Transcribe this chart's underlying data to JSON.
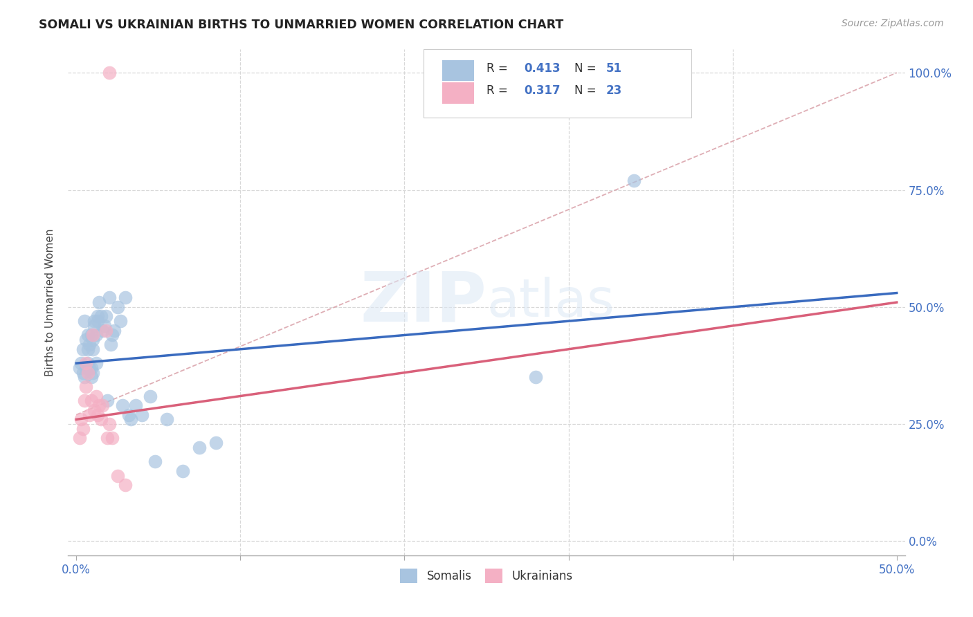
{
  "title": "SOMALI VS UKRAINIAN BIRTHS TO UNMARRIED WOMEN CORRELATION CHART",
  "source": "Source: ZipAtlas.com",
  "ylabel": "Births to Unmarried Women",
  "watermark": "ZIPatlas",
  "legend_r_somali": "0.413",
  "legend_n_somali": "51",
  "legend_r_ukrainian": "0.317",
  "legend_n_ukrainian": "23",
  "somali_color": "#a8c4e0",
  "ukrainian_color": "#f4b0c4",
  "somali_trend_color": "#3a6bbf",
  "ukrainian_trend_color": "#d9607a",
  "diagonal_color": "#d9a0a8",
  "grid_color": "#d8d8d8",
  "title_color": "#222222",
  "source_color": "#999999",
  "label_color": "#4472c4",
  "xlim": [
    0.0,
    0.5
  ],
  "ylim": [
    -0.03,
    1.05
  ],
  "somali_x": [
    0.002,
    0.003,
    0.004,
    0.004,
    0.005,
    0.005,
    0.006,
    0.006,
    0.007,
    0.007,
    0.007,
    0.008,
    0.008,
    0.009,
    0.009,
    0.009,
    0.01,
    0.01,
    0.01,
    0.011,
    0.011,
    0.012,
    0.012,
    0.013,
    0.013,
    0.014,
    0.015,
    0.016,
    0.017,
    0.018,
    0.019,
    0.02,
    0.021,
    0.022,
    0.023,
    0.025,
    0.027,
    0.028,
    0.03,
    0.032,
    0.033,
    0.036,
    0.04,
    0.045,
    0.048,
    0.055,
    0.065,
    0.075,
    0.085,
    0.28,
    0.34
  ],
  "somali_y": [
    0.37,
    0.38,
    0.36,
    0.41,
    0.47,
    0.35,
    0.37,
    0.43,
    0.41,
    0.44,
    0.38,
    0.37,
    0.42,
    0.44,
    0.37,
    0.35,
    0.36,
    0.41,
    0.43,
    0.47,
    0.46,
    0.38,
    0.44,
    0.48,
    0.47,
    0.51,
    0.48,
    0.45,
    0.46,
    0.48,
    0.3,
    0.52,
    0.42,
    0.44,
    0.45,
    0.5,
    0.47,
    0.29,
    0.52,
    0.27,
    0.26,
    0.29,
    0.27,
    0.31,
    0.17,
    0.26,
    0.15,
    0.2,
    0.21,
    0.35,
    0.77
  ],
  "ukrainian_x": [
    0.002,
    0.003,
    0.004,
    0.005,
    0.006,
    0.006,
    0.007,
    0.008,
    0.009,
    0.01,
    0.011,
    0.012,
    0.013,
    0.014,
    0.015,
    0.016,
    0.018,
    0.019,
    0.02,
    0.022,
    0.025,
    0.03,
    0.02
  ],
  "ukrainian_y": [
    0.22,
    0.26,
    0.24,
    0.3,
    0.33,
    0.38,
    0.36,
    0.27,
    0.3,
    0.44,
    0.28,
    0.31,
    0.27,
    0.29,
    0.26,
    0.29,
    0.45,
    0.22,
    0.25,
    0.22,
    0.14,
    0.12,
    1.0
  ],
  "somali_trend_intercept": 0.38,
  "somali_trend_slope": 0.3,
  "ukrainian_trend_intercept": 0.26,
  "ukrainian_trend_slope": 0.5
}
